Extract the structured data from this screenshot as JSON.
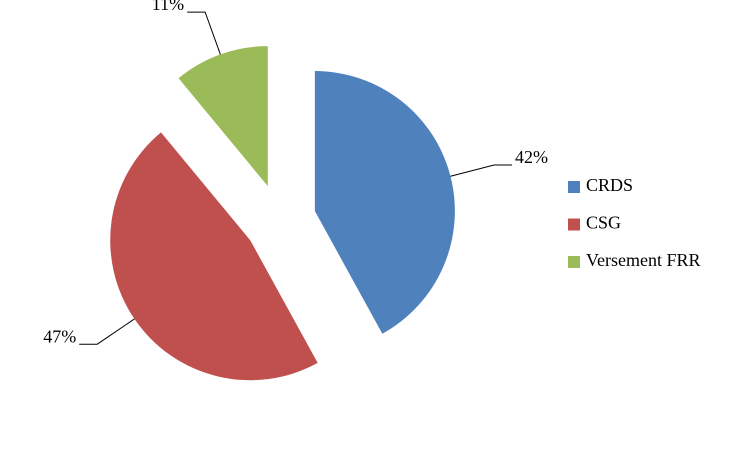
{
  "chart_data": {
    "type": "pie",
    "categories": [
      "CRDS",
      "CSG",
      "Versement FRR"
    ],
    "values": [
      42,
      47,
      11
    ],
    "value_labels": [
      "42%",
      "47%",
      "11%"
    ],
    "colors": [
      "#4f81bd",
      "#c0504d",
      "#9bbb59"
    ],
    "legend": "right"
  }
}
